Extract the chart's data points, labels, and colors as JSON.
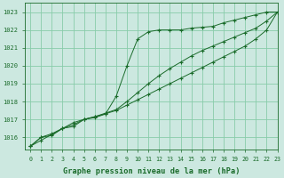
{
  "title": "Graphe pression niveau de la mer (hPa)",
  "bg_color": "#cce8e0",
  "grid_color": "#88ccaa",
  "line_color": "#1a6b2a",
  "xlim": [
    -0.5,
    23
  ],
  "ylim": [
    1015.3,
    1023.5
  ],
  "yticks": [
    1016,
    1017,
    1018,
    1019,
    1020,
    1021,
    1022,
    1023
  ],
  "xticks": [
    0,
    1,
    2,
    3,
    4,
    5,
    6,
    7,
    8,
    9,
    10,
    11,
    12,
    13,
    14,
    15,
    16,
    17,
    18,
    19,
    20,
    21,
    22,
    23
  ],
  "series1": [
    1015.5,
    1016.0,
    1016.1,
    1016.5,
    1016.6,
    1017.0,
    1017.1,
    1017.3,
    1018.3,
    1020.0,
    1021.5,
    1021.9,
    1022.0,
    1022.0,
    1022.0,
    1022.1,
    1022.15,
    1022.2,
    1022.4,
    1022.55,
    1022.7,
    1022.85,
    1023.0,
    1023.0
  ],
  "series2": [
    1015.5,
    1016.0,
    1016.2,
    1016.5,
    1016.7,
    1017.0,
    1017.15,
    1017.35,
    1017.55,
    1018.0,
    1018.5,
    1019.0,
    1019.45,
    1019.85,
    1020.2,
    1020.55,
    1020.85,
    1021.1,
    1021.35,
    1021.6,
    1021.85,
    1022.1,
    1022.5,
    1023.0
  ],
  "series3": [
    1015.5,
    1015.83,
    1016.16,
    1016.49,
    1016.82,
    1017.0,
    1017.15,
    1017.32,
    1017.5,
    1017.8,
    1018.1,
    1018.4,
    1018.7,
    1019.0,
    1019.3,
    1019.6,
    1019.9,
    1020.2,
    1020.5,
    1020.8,
    1021.1,
    1021.5,
    1022.0,
    1023.0
  ]
}
